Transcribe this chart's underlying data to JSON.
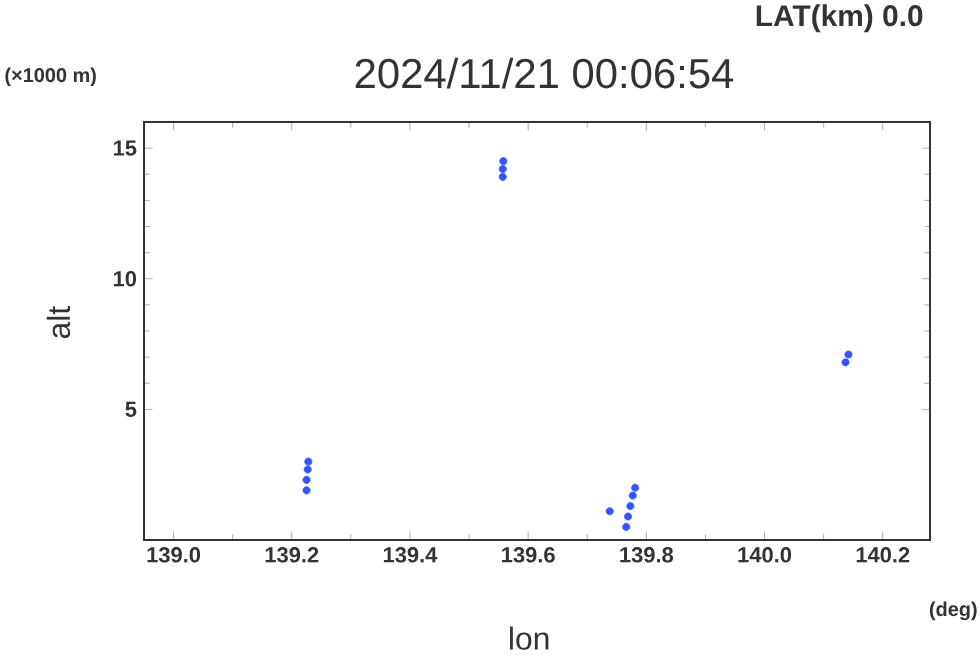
{
  "chart_data": {
    "type": "scatter",
    "title": "2024/11/21 00:06:54",
    "xlabel": "lon",
    "ylabel": "alt",
    "annotations": [
      "LAT(km) 0.0",
      "(×1000 m)",
      "(deg)"
    ],
    "series": [
      {
        "color": "#3355ff",
        "x": [
          139.225,
          139.225,
          139.227,
          139.228,
          139.557,
          139.557,
          139.558,
          140.137,
          140.142,
          139.738,
          139.766,
          139.769,
          139.773,
          139.777,
          139.781
        ],
        "values": [
          1.9,
          2.3,
          2.7,
          3.0,
          13.9,
          14.2,
          14.5,
          6.8,
          7.1,
          1.1,
          0.5,
          0.9,
          1.3,
          1.7,
          2.0
        ]
      }
    ],
    "xlim": [
      138.95,
      140.28
    ],
    "ylim": [
      0,
      16
    ],
    "xticks": [
      {
        "value": 139.0,
        "label": "139.0"
      },
      {
        "value": 139.2,
        "label": "139.2"
      },
      {
        "value": 139.4,
        "label": "139.4"
      },
      {
        "value": 139.6,
        "label": "139.6"
      },
      {
        "value": 139.8,
        "label": "139.8"
      },
      {
        "value": 140.0,
        "label": "140.0"
      },
      {
        "value": 140.2,
        "label": "140.2"
      }
    ],
    "yticks": [
      5,
      10,
      15
    ]
  }
}
